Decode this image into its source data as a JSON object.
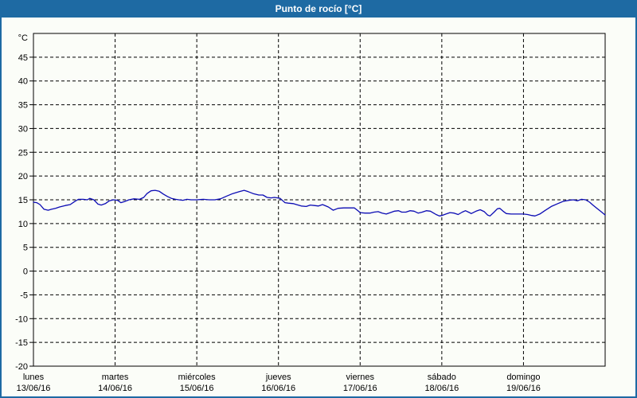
{
  "window": {
    "title": "Punto de rocío [°C]"
  },
  "colors": {
    "titlebar_bg": "#1e6aa3",
    "titlebar_text": "#ffffff",
    "frame": "#1e6aa3",
    "background": "#fbfdf8",
    "axis": "#000000",
    "grid": "#000000",
    "tick_text": "#000000",
    "line": "#0b0bb4"
  },
  "chart_data": {
    "type": "line",
    "title": "Punto de rocío [°C]",
    "xlabel": "",
    "ylabel": "°C",
    "ylim": [
      -20,
      50
    ],
    "yticks": [
      45,
      40,
      35,
      30,
      25,
      20,
      15,
      10,
      5,
      0,
      -5,
      -10,
      -15,
      -20
    ],
    "x_range_days": 7,
    "grid": "dashed",
    "legend": "none",
    "x_days": [
      {
        "weekday": "lunes",
        "date": "13/06/16"
      },
      {
        "weekday": "martes",
        "date": "14/06/16"
      },
      {
        "weekday": "miércoles",
        "date": "15/06/16"
      },
      {
        "weekday": "jueves",
        "date": "16/06/16"
      },
      {
        "weekday": "viernes",
        "date": "17/06/16"
      },
      {
        "weekday": "sábado",
        "date": "18/06/16"
      },
      {
        "weekday": "domingo",
        "date": "19/06/16"
      }
    ],
    "series": [
      {
        "name": "Punto de rocío",
        "color": "#0b0bb4",
        "points": [
          [
            0.0,
            14.5
          ],
          [
            0.04,
            14.4
          ],
          [
            0.08,
            14.0
          ],
          [
            0.13,
            13.0
          ],
          [
            0.18,
            12.8
          ],
          [
            0.22,
            13.0
          ],
          [
            0.27,
            13.2
          ],
          [
            0.32,
            13.5
          ],
          [
            0.39,
            13.8
          ],
          [
            0.45,
            14.0
          ],
          [
            0.51,
            14.7
          ],
          [
            0.55,
            15.1
          ],
          [
            0.61,
            15.1
          ],
          [
            0.66,
            15.0
          ],
          [
            0.69,
            15.3
          ],
          [
            0.74,
            15.0
          ],
          [
            0.79,
            14.1
          ],
          [
            0.83,
            13.9
          ],
          [
            0.88,
            14.2
          ],
          [
            0.93,
            14.8
          ],
          [
            0.98,
            15.0
          ],
          [
            1.03,
            14.9
          ],
          [
            1.07,
            14.4
          ],
          [
            1.11,
            14.6
          ],
          [
            1.17,
            15.0
          ],
          [
            1.23,
            15.2
          ],
          [
            1.3,
            15.1
          ],
          [
            1.35,
            15.5
          ],
          [
            1.39,
            16.3
          ],
          [
            1.44,
            16.9
          ],
          [
            1.49,
            17.0
          ],
          [
            1.54,
            16.8
          ],
          [
            1.59,
            16.2
          ],
          [
            1.64,
            15.7
          ],
          [
            1.69,
            15.3
          ],
          [
            1.74,
            15.1
          ],
          [
            1.78,
            15.0
          ],
          [
            1.83,
            14.9
          ],
          [
            1.88,
            15.1
          ],
          [
            1.93,
            15.0
          ],
          [
            2.0,
            15.0
          ],
          [
            2.08,
            15.1
          ],
          [
            2.15,
            15.0
          ],
          [
            2.22,
            15.0
          ],
          [
            2.29,
            15.2
          ],
          [
            2.37,
            15.8
          ],
          [
            2.44,
            16.3
          ],
          [
            2.52,
            16.7
          ],
          [
            2.58,
            17.0
          ],
          [
            2.63,
            16.7
          ],
          [
            2.69,
            16.3
          ],
          [
            2.76,
            16.0
          ],
          [
            2.81,
            16.0
          ],
          [
            2.86,
            15.5
          ],
          [
            2.91,
            15.4
          ],
          [
            2.95,
            15.5
          ],
          [
            2.99,
            15.4
          ],
          [
            3.02,
            15.3
          ],
          [
            3.08,
            14.4
          ],
          [
            3.12,
            14.3
          ],
          [
            3.18,
            14.2
          ],
          [
            3.22,
            14.0
          ],
          [
            3.28,
            13.7
          ],
          [
            3.34,
            13.6
          ],
          [
            3.39,
            13.9
          ],
          [
            3.44,
            13.8
          ],
          [
            3.49,
            13.7
          ],
          [
            3.54,
            14.0
          ],
          [
            3.61,
            13.5
          ],
          [
            3.67,
            12.8
          ],
          [
            3.73,
            13.2
          ],
          [
            3.8,
            13.3
          ],
          [
            3.86,
            13.3
          ],
          [
            3.93,
            13.3
          ],
          [
            3.98,
            12.6
          ],
          [
            4.0,
            12.3
          ],
          [
            4.06,
            12.2
          ],
          [
            4.12,
            12.2
          ],
          [
            4.17,
            12.4
          ],
          [
            4.22,
            12.5
          ],
          [
            4.27,
            12.2
          ],
          [
            4.32,
            12.0
          ],
          [
            4.37,
            12.3
          ],
          [
            4.42,
            12.6
          ],
          [
            4.47,
            12.7
          ],
          [
            4.51,
            12.4
          ],
          [
            4.56,
            12.4
          ],
          [
            4.61,
            12.7
          ],
          [
            4.66,
            12.6
          ],
          [
            4.71,
            12.2
          ],
          [
            4.76,
            12.4
          ],
          [
            4.81,
            12.7
          ],
          [
            4.86,
            12.6
          ],
          [
            4.9,
            12.2
          ],
          [
            4.93,
            11.9
          ],
          [
            4.97,
            11.6
          ],
          [
            5.0,
            11.7
          ],
          [
            5.05,
            12.0
          ],
          [
            5.1,
            12.3
          ],
          [
            5.15,
            12.2
          ],
          [
            5.2,
            11.9
          ],
          [
            5.25,
            12.4
          ],
          [
            5.29,
            12.7
          ],
          [
            5.34,
            12.3
          ],
          [
            5.36,
            12.1
          ],
          [
            5.42,
            12.6
          ],
          [
            5.47,
            12.9
          ],
          [
            5.52,
            12.5
          ],
          [
            5.56,
            11.8
          ],
          [
            5.59,
            11.6
          ],
          [
            5.64,
            12.4
          ],
          [
            5.68,
            13.1
          ],
          [
            5.71,
            13.2
          ],
          [
            5.75,
            12.6
          ],
          [
            5.79,
            12.1
          ],
          [
            5.85,
            12.0
          ],
          [
            5.91,
            12.0
          ],
          [
            5.97,
            12.0
          ],
          [
            6.0,
            12.0
          ],
          [
            6.05,
            11.9
          ],
          [
            6.1,
            11.7
          ],
          [
            6.14,
            11.6
          ],
          [
            6.2,
            12.0
          ],
          [
            6.27,
            12.8
          ],
          [
            6.34,
            13.6
          ],
          [
            6.42,
            14.2
          ],
          [
            6.49,
            14.7
          ],
          [
            6.56,
            14.9
          ],
          [
            6.61,
            15.0
          ],
          [
            6.66,
            14.8
          ],
          [
            6.71,
            15.1
          ],
          [
            6.76,
            15.0
          ],
          [
            6.81,
            14.5
          ],
          [
            6.85,
            13.9
          ],
          [
            6.9,
            13.2
          ],
          [
            6.95,
            12.5
          ],
          [
            7.0,
            11.8
          ]
        ]
      }
    ]
  }
}
